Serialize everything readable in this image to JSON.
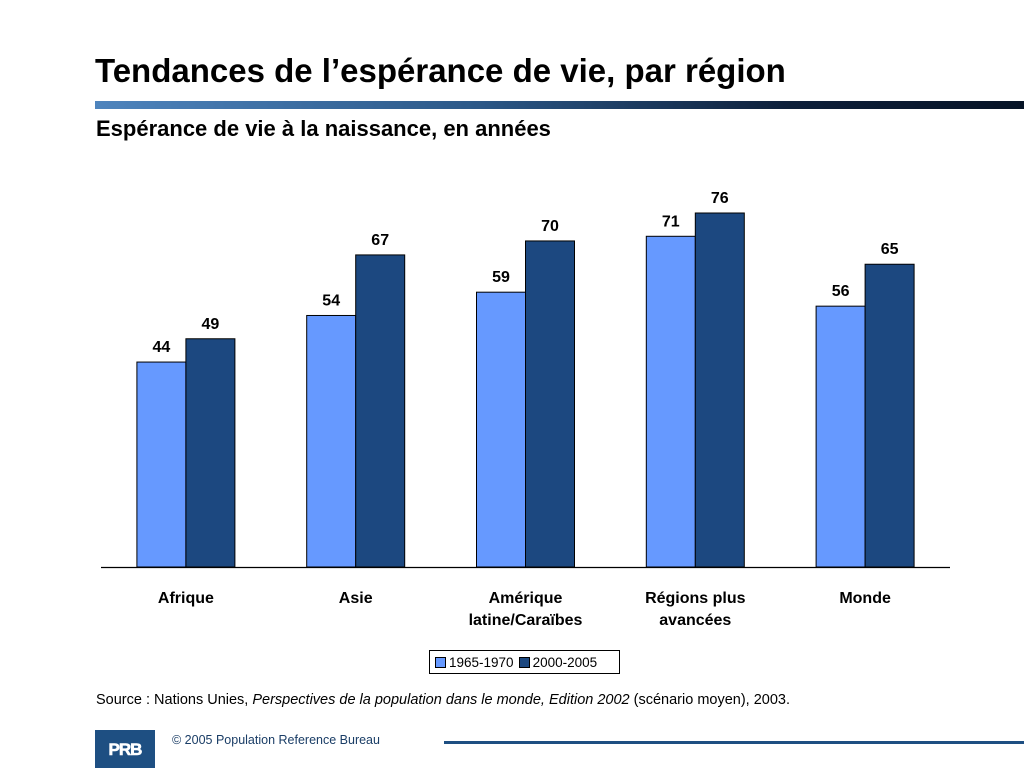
{
  "page": {
    "title": "Tendances de l’espérance de vie, par région",
    "subtitle": "Espérance de vie à la naissance, en années",
    "source_prefix": "Source : Nations Unies, ",
    "source_italic": "Perspectives de la population dans le monde, Edition 2002",
    "source_suffix": " (scénario moyen), 2003.",
    "copyright": "© 2005 Population Reference Bureau",
    "logo_text": "PRB"
  },
  "chart_data": {
    "type": "bar",
    "categories": [
      [
        "Afrique"
      ],
      [
        "Asie"
      ],
      [
        "Amérique",
        "latine/Caraïbes"
      ],
      [
        "Régions plus",
        "avancées"
      ],
      [
        "Monde"
      ]
    ],
    "series": [
      {
        "name": "1965-1970",
        "color": "#6699ff",
        "values": [
          44,
          54,
          59,
          71,
          56
        ]
      },
      {
        "name": "2000-2005",
        "color": "#1c4880",
        "values": [
          49,
          67,
          70,
          76,
          65
        ]
      }
    ],
    "ylim": [
      0,
      76
    ],
    "grid": false,
    "legend_position": "bottom"
  }
}
